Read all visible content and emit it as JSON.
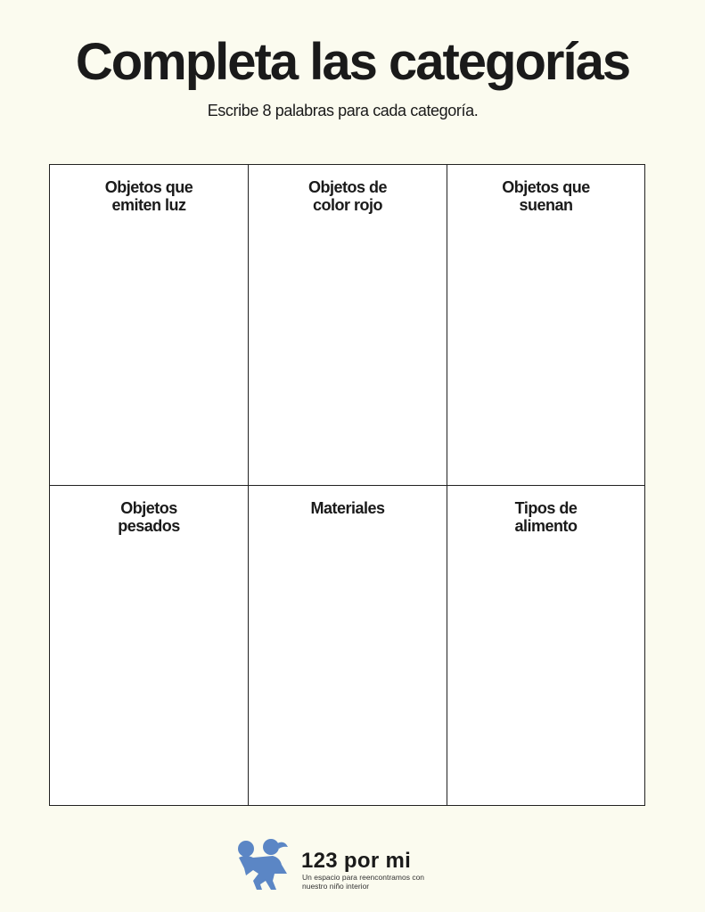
{
  "header": {
    "title": "Completa las categorías",
    "subtitle": "Escribe 8 palabras para cada categoría."
  },
  "categories": [
    {
      "label": "Objetos que emiten luz"
    },
    {
      "label": "Objetos de color rojo"
    },
    {
      "label": "Objetos que suenan"
    },
    {
      "label": "Objetos pesados"
    },
    {
      "label": "Materiales"
    },
    {
      "label": "Tipos de alimento"
    }
  ],
  "footer": {
    "brand": "123 por mi",
    "tagline": "Un espacio para reencontramos con nuestro niño interior",
    "logo_color": "#5b86c5"
  }
}
